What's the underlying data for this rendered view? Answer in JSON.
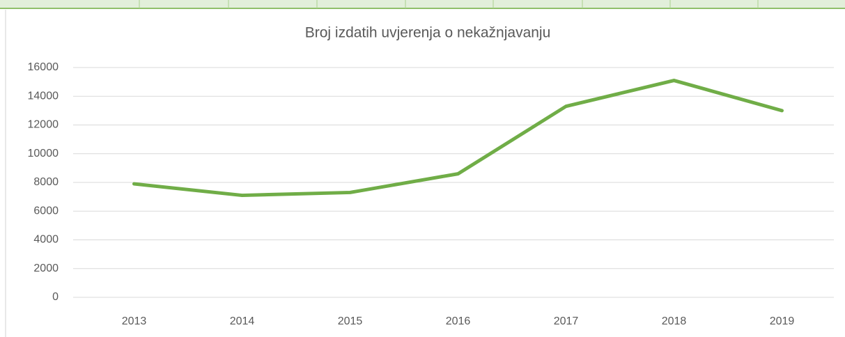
{
  "chart_data": {
    "type": "line",
    "title": "Broj izdatih uvjerenja o nekažnjavanju",
    "categories": [
      "2013",
      "2014",
      "2015",
      "2016",
      "2017",
      "2018",
      "2019"
    ],
    "values": [
      7900,
      7100,
      7300,
      8600,
      13300,
      15100,
      13000
    ],
    "color": "#70ad47",
    "ylim": [
      0,
      16000
    ],
    "yticks": [
      0,
      2000,
      4000,
      6000,
      8000,
      10000,
      12000,
      14000,
      16000
    ],
    "grid": true
  }
}
